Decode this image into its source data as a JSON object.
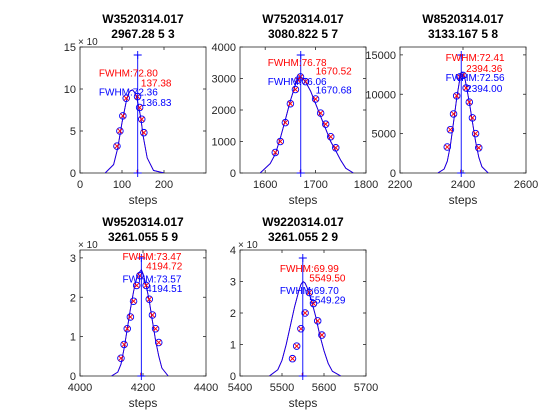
{
  "chart_data": [
    {
      "type": "line",
      "title": [
        "W3520314.017",
        "2967.28 5 3"
      ],
      "xlabel": "steps",
      "y_multiplier": "× 10",
      "xlim": [
        0,
        300
      ],
      "xticks": [
        0,
        100,
        200
      ],
      "ylim": [
        0,
        15
      ],
      "yticks": [
        0,
        5,
        10,
        15
      ],
      "series": [
        {
          "color": "#ff0000",
          "x": [
            60,
            80,
            90,
            100,
            110,
            115,
            120,
            125,
            130,
            135,
            140,
            145,
            150,
            160,
            175,
            200
          ],
          "y": [
            0,
            1.0,
            3.0,
            6.0,
            8.5,
            9.4,
            9.8,
            9.9,
            9.6,
            9.0,
            7.8,
            6.5,
            4.5,
            1.8,
            0.3,
            0
          ]
        },
        {
          "color": "#0000ff",
          "x": [
            60,
            80,
            90,
            100,
            110,
            115,
            120,
            125,
            130,
            135,
            140,
            145,
            150,
            160,
            175,
            200
          ],
          "y": [
            0,
            1.0,
            3.0,
            6.0,
            8.5,
            9.4,
            9.8,
            9.9,
            9.6,
            9.0,
            7.8,
            6.5,
            4.5,
            1.8,
            0.3,
            0
          ]
        }
      ],
      "points": {
        "x": [
          88,
          95,
          102,
          110,
          137,
          142,
          147,
          152
        ],
        "y": [
          3.2,
          5.0,
          6.8,
          8.9,
          9.1,
          7.8,
          6.4,
          4.8
        ]
      },
      "markers": {
        "red_x": 137.38,
        "blue_x": 136.83,
        "vline_x": 137.38
      },
      "annotations": [
        {
          "text": "FWHM:72.80",
          "color": "#ff0000",
          "x": 45,
          "y": 11.5
        },
        {
          "text": "137.38",
          "color": "#ff0000",
          "x": 145,
          "y": 10.3
        },
        {
          "text": "FWHM:72.36",
          "color": "#0000ff",
          "x": 45,
          "y": 9.2
        },
        {
          "text": "136.83",
          "color": "#0000ff",
          "x": 145,
          "y": 8.0
        }
      ]
    },
    {
      "type": "line",
      "title": [
        "W7520314.017",
        "3080.822 5 7"
      ],
      "xlabel": "steps",
      "xlim": [
        1550,
        1800
      ],
      "xticks": [
        1600,
        1700,
        1800
      ],
      "ylim": [
        0,
        4000
      ],
      "yticks": [
        0,
        1000,
        2000,
        3000,
        4000
      ],
      "series": [
        {
          "color": "#ff0000",
          "x": [
            1590,
            1610,
            1620,
            1630,
            1640,
            1650,
            1660,
            1665,
            1670,
            1675,
            1680,
            1690,
            1700,
            1710,
            1720,
            1730,
            1740,
            1750,
            1760,
            1775
          ],
          "y": [
            0,
            300,
            600,
            1100,
            1700,
            2300,
            2800,
            3000,
            3050,
            3000,
            2900,
            2600,
            2200,
            1800,
            1400,
            1000,
            700,
            400,
            150,
            0
          ]
        },
        {
          "color": "#0000ff",
          "x": [
            1590,
            1610,
            1620,
            1630,
            1640,
            1650,
            1660,
            1665,
            1670,
            1675,
            1680,
            1690,
            1700,
            1710,
            1720,
            1730,
            1740,
            1750,
            1760,
            1775
          ],
          "y": [
            0,
            300,
            600,
            1100,
            1700,
            2300,
            2800,
            3000,
            3050,
            3000,
            2900,
            2600,
            2200,
            1800,
            1400,
            1000,
            700,
            400,
            150,
            0
          ]
        }
      ],
      "points": {
        "x": [
          1620,
          1630,
          1640,
          1650,
          1660,
          1665,
          1670,
          1680,
          1700,
          1710,
          1720,
          1730,
          1740
        ],
        "y": [
          650,
          1000,
          1600,
          2200,
          2650,
          2950,
          3050,
          2900,
          2350,
          1900,
          1550,
          1150,
          800
        ]
      },
      "markers": {
        "red_x": 1670.52,
        "blue_x": 1670.68,
        "vline_x": 1670.52
      },
      "annotations": [
        {
          "text": "FWHM:76.78",
          "color": "#ff0000",
          "x": 1605,
          "y": 3400
        },
        {
          "text": "1670.52",
          "color": "#ff0000",
          "x": 1700,
          "y": 3120
        },
        {
          "text": "FWHM:76.06",
          "color": "#0000ff",
          "x": 1605,
          "y": 2800
        },
        {
          "text": "1670.68",
          "color": "#0000ff",
          "x": 1700,
          "y": 2520
        }
      ]
    },
    {
      "type": "line",
      "title": [
        "W8520314.017",
        "3133.167 5 8"
      ],
      "xlabel": "steps",
      "xlim": [
        2200,
        2600
      ],
      "xticks": [
        2200,
        2400,
        2600
      ],
      "ylim": [
        0,
        16000
      ],
      "yticks": [
        0,
        5000,
        10000,
        15000
      ],
      "series": [
        {
          "color": "#ff0000",
          "x": [
            2320,
            2340,
            2350,
            2360,
            2370,
            2380,
            2390,
            2395,
            2400,
            2405,
            2410,
            2420,
            2430,
            2440,
            2450,
            2460,
            2480
          ],
          "y": [
            0,
            500,
            1500,
            3500,
            6500,
            9500,
            12000,
            12800,
            12700,
            12200,
            11200,
            9000,
            6500,
            4000,
            2000,
            800,
            0
          ]
        },
        {
          "color": "#0000ff",
          "x": [
            2320,
            2340,
            2350,
            2360,
            2370,
            2380,
            2390,
            2395,
            2400,
            2405,
            2410,
            2420,
            2430,
            2440,
            2450,
            2460,
            2480
          ],
          "y": [
            0,
            500,
            1500,
            3500,
            6500,
            9500,
            12000,
            12800,
            12700,
            12200,
            11200,
            9000,
            6500,
            4000,
            2000,
            800,
            0
          ]
        }
      ],
      "points": {
        "x": [
          2350,
          2360,
          2370,
          2380,
          2390,
          2400,
          2410,
          2420,
          2430,
          2440,
          2450
        ],
        "y": [
          3300,
          5500,
          7500,
          9800,
          12200,
          12400,
          10800,
          9000,
          7000,
          5000,
          3200
        ]
      },
      "markers": {
        "red_x": 2394.36,
        "blue_x": 2394.0,
        "vline_x": 2394.36
      },
      "annotations": [
        {
          "text": "FWHM:72.41",
          "color": "#ff0000",
          "x": 2345,
          "y": 14200
        },
        {
          "text": "2394.36",
          "color": "#ff0000",
          "x": 2410,
          "y": 12800
        },
        {
          "text": "FWHM:72.56",
          "color": "#0000ff",
          "x": 2345,
          "y": 11700
        },
        {
          "text": "2394.00",
          "color": "#0000ff",
          "x": 2410,
          "y": 10300
        }
      ]
    },
    {
      "type": "line",
      "title": [
        "W9520314.017",
        "3261.055 5 9"
      ],
      "xlabel": "steps",
      "y_multiplier": "× 10",
      "xlim": [
        4000,
        4400
      ],
      "xticks": [
        4000,
        4200,
        4400
      ],
      "ylim": [
        0,
        3.2
      ],
      "yticks": [
        0,
        1,
        2,
        3
      ],
      "series": [
        {
          "color": "#ff0000",
          "x": [
            4100,
            4120,
            4130,
            4140,
            4150,
            4160,
            4170,
            4180,
            4190,
            4195,
            4200,
            4210,
            4220,
            4230,
            4240,
            4250,
            4260,
            4280
          ],
          "y": [
            0,
            0.1,
            0.3,
            0.7,
            1.2,
            1.7,
            2.15,
            2.5,
            2.65,
            2.7,
            2.6,
            2.3,
            1.9,
            1.4,
            0.9,
            0.5,
            0.2,
            0
          ]
        },
        {
          "color": "#0000ff",
          "x": [
            4100,
            4120,
            4130,
            4140,
            4150,
            4160,
            4170,
            4180,
            4190,
            4195,
            4200,
            4210,
            4220,
            4230,
            4240,
            4250,
            4260,
            4280
          ],
          "y": [
            0,
            0.1,
            0.3,
            0.7,
            1.2,
            1.7,
            2.15,
            2.5,
            2.65,
            2.7,
            2.6,
            2.3,
            1.9,
            1.4,
            0.9,
            0.5,
            0.2,
            0
          ]
        }
      ],
      "points": {
        "x": [
          4130,
          4140,
          4150,
          4160,
          4170,
          4180,
          4190,
          4210,
          4220,
          4230,
          4240,
          4250
        ],
        "y": [
          0.45,
          0.8,
          1.2,
          1.5,
          1.9,
          2.3,
          2.55,
          2.3,
          1.95,
          1.55,
          1.2,
          0.85
        ]
      },
      "markers": {
        "red_x": 4194.72,
        "blue_x": 4194.51,
        "vline_x": 4194.72
      },
      "annotations": [
        {
          "text": "FWHM:73.47",
          "color": "#ff0000",
          "x": 4135,
          "y": 2.95
        },
        {
          "text": "4194.72",
          "color": "#ff0000",
          "x": 4210,
          "y": 2.7
        },
        {
          "text": "FWHM:73.57",
          "color": "#0000ff",
          "x": 4135,
          "y": 2.38
        },
        {
          "text": "4194.51",
          "color": "#0000ff",
          "x": 4210,
          "y": 2.13
        }
      ]
    },
    {
      "type": "line",
      "title": [
        "W9220314.017",
        "3261.055 2 9"
      ],
      "xlabel": "steps",
      "y_multiplier": "× 10",
      "xlim": [
        5400,
        5700
      ],
      "xticks": [
        5400,
        5500,
        5600,
        5700
      ],
      "ylim": [
        0,
        4
      ],
      "yticks": [
        0,
        1,
        2,
        3,
        4
      ],
      "series": [
        {
          "color": "#ff0000",
          "x": [
            5470,
            5490,
            5500,
            5510,
            5520,
            5530,
            5540,
            5545,
            5550,
            5555,
            5560,
            5570,
            5580,
            5590,
            5600,
            5610,
            5620,
            5640
          ],
          "y": [
            0,
            0.2,
            0.5,
            1.0,
            1.6,
            2.2,
            2.7,
            2.9,
            3.0,
            2.95,
            2.8,
            2.4,
            1.9,
            1.3,
            0.8,
            0.4,
            0.15,
            0
          ]
        },
        {
          "color": "#0000ff",
          "x": [
            5470,
            5490,
            5500,
            5510,
            5520,
            5530,
            5540,
            5545,
            5550,
            5555,
            5560,
            5570,
            5580,
            5590,
            5600,
            5610,
            5620,
            5640
          ],
          "y": [
            0,
            0.2,
            0.5,
            1.0,
            1.6,
            2.2,
            2.7,
            2.9,
            3.0,
            2.95,
            2.8,
            2.4,
            1.9,
            1.3,
            0.8,
            0.4,
            0.15,
            0
          ]
        }
      ],
      "points": {
        "x": [
          5525,
          5535,
          5545,
          5555,
          5565,
          5575,
          5585,
          5595
        ],
        "y": [
          0.55,
          0.95,
          1.5,
          2.0,
          2.65,
          2.3,
          1.75,
          1.3
        ]
      },
      "markers": {
        "red_x": 5549.5,
        "blue_x": 5549.29,
        "vline_x": 5549.5
      },
      "annotations": [
        {
          "text": "FWHM:69.99",
          "color": "#ff0000",
          "x": 5495,
          "y": 3.3
        },
        {
          "text": "5549.50",
          "color": "#ff0000",
          "x": 5565,
          "y": 3.0
        },
        {
          "text": "FWHM:69.70",
          "color": "#0000ff",
          "x": 5495,
          "y": 2.6
        },
        {
          "text": "5549.29",
          "color": "#0000ff",
          "x": 5565,
          "y": 2.3
        }
      ]
    }
  ]
}
